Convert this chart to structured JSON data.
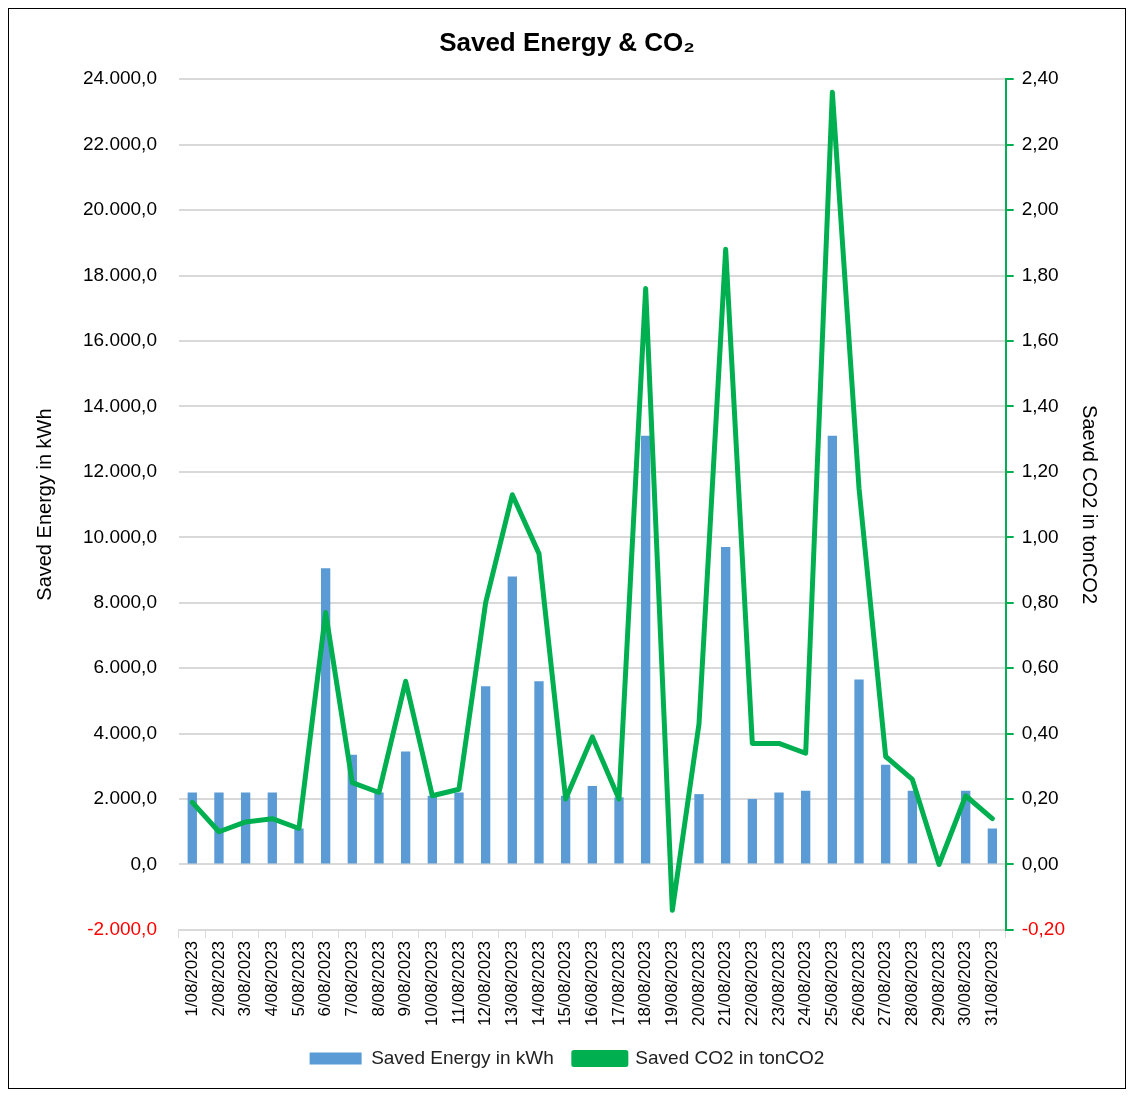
{
  "chart_data": {
    "type": "bar",
    "title": "Saved Energy & CO₂",
    "ylabel": "Saved Energy in kWh",
    "y2label": "Saevd CO2 in tonCO2",
    "categories": [
      "1/08/2023",
      "2/08/2023",
      "3/08/2023",
      "4/08/2023",
      "5/08/2023",
      "6/08/2023",
      "7/08/2023",
      "8/08/2023",
      "9/08/2023",
      "10/08/2023",
      "11/08/2023",
      "12/08/2023",
      "13/08/2023",
      "14/08/2023",
      "15/08/2023",
      "16/08/2023",
      "17/08/2023",
      "18/08/2023",
      "19/08/2023",
      "20/08/2023",
      "21/08/2023",
      "22/08/2023",
      "23/08/2023",
      "24/08/2023",
      "25/08/2023",
      "26/08/2023",
      "27/08/2023",
      "28/08/2023",
      "29/08/2023",
      "30/08/2023",
      "31/08/2023"
    ],
    "series": [
      {
        "name": "Saved Energy in kWh",
        "color": "#5b9bd5",
        "values": [
          2200,
          2200,
          2200,
          2200,
          1100,
          9050,
          3350,
          2200,
          3450,
          2100,
          2200,
          5450,
          8800,
          5600,
          2100,
          2400,
          2050,
          13100,
          null,
          2150,
          9700,
          2000,
          2200,
          2250,
          13100,
          5650,
          3050,
          2250,
          0,
          2250,
          1100
        ]
      },
      {
        "name": "Saved CO2 in tonCO2",
        "type": "line",
        "axis": "y2",
        "color": "#00b050",
        "values": [
          0.19,
          0.1,
          0.13,
          0.14,
          0.11,
          0.77,
          0.25,
          0.22,
          0.56,
          0.21,
          0.23,
          0.8,
          1.13,
          0.95,
          0.2,
          0.39,
          0.2,
          1.76,
          -0.14,
          0.43,
          1.88,
          0.37,
          0.37,
          0.34,
          2.36,
          1.15,
          0.33,
          0.26,
          0.0,
          0.21,
          0.14
        ]
      }
    ],
    "ylim": [
      -2000,
      24000
    ],
    "yticks": [
      {
        "value": -2000,
        "label": "-2.000,0"
      },
      {
        "value": 0,
        "label": "0,0"
      },
      {
        "value": 2000,
        "label": "2.000,0"
      },
      {
        "value": 4000,
        "label": "4.000,0"
      },
      {
        "value": 6000,
        "label": "6.000,0"
      },
      {
        "value": 8000,
        "label": "8.000,0"
      },
      {
        "value": 10000,
        "label": "10.000,0"
      },
      {
        "value": 12000,
        "label": "12.000,0"
      },
      {
        "value": 14000,
        "label": "14.000,0"
      },
      {
        "value": 16000,
        "label": "16.000,0"
      },
      {
        "value": 18000,
        "label": "18.000,0"
      },
      {
        "value": 20000,
        "label": "20.000,0"
      },
      {
        "value": 22000,
        "label": "22.000,0"
      },
      {
        "value": 24000,
        "label": "24.000,0"
      }
    ],
    "y2lim": [
      -0.2,
      2.4
    ],
    "y2ticks": [
      {
        "value": -0.2,
        "label": "-0,20"
      },
      {
        "value": 0,
        "label": "0,00"
      },
      {
        "value": 0.2,
        "label": "0,20"
      },
      {
        "value": 0.4,
        "label": "0,40"
      },
      {
        "value": 0.6,
        "label": "0,60"
      },
      {
        "value": 0.8,
        "label": "0,80"
      },
      {
        "value": 1,
        "label": "1,00"
      },
      {
        "value": 1.2,
        "label": "1,20"
      },
      {
        "value": 1.4,
        "label": "1,40"
      },
      {
        "value": 1.6,
        "label": "1,60"
      },
      {
        "value": 1.8,
        "label": "1,80"
      },
      {
        "value": 2,
        "label": "2,00"
      },
      {
        "value": 2.2,
        "label": "2,20"
      },
      {
        "value": 2.4,
        "label": "2,40"
      }
    ],
    "grid": "y",
    "legend": "bottom",
    "marker": "none",
    "line_style": "solid"
  }
}
